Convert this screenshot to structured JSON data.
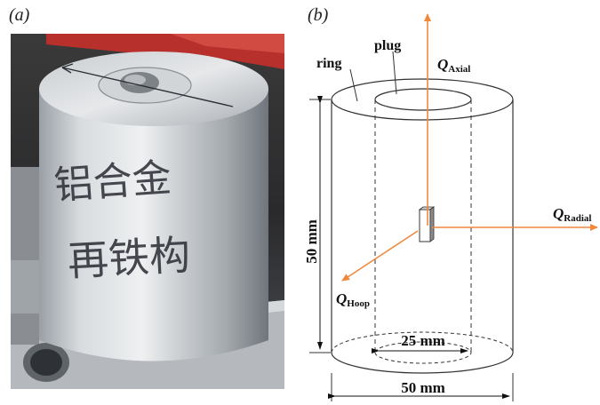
{
  "panels": {
    "a": {
      "label": "(a)"
    },
    "b": {
      "label": "(b)"
    }
  },
  "photo": {
    "handwriting": [
      "铝合金",
      "再铁构"
    ]
  },
  "schematic": {
    "ring_label": "ring",
    "plug_label": "plug",
    "height_dim": "50 mm",
    "inner_dim": "25 mm",
    "outer_dim": "50 mm",
    "axes": {
      "axial": {
        "q": "Q",
        "sub": "Axial"
      },
      "radial": {
        "q": "Q",
        "sub": "Radial"
      },
      "hoop": {
        "q": "Q",
        "sub": "Hoop"
      }
    },
    "colors": {
      "arrow": "#f0883c",
      "lines": "#333333"
    }
  }
}
